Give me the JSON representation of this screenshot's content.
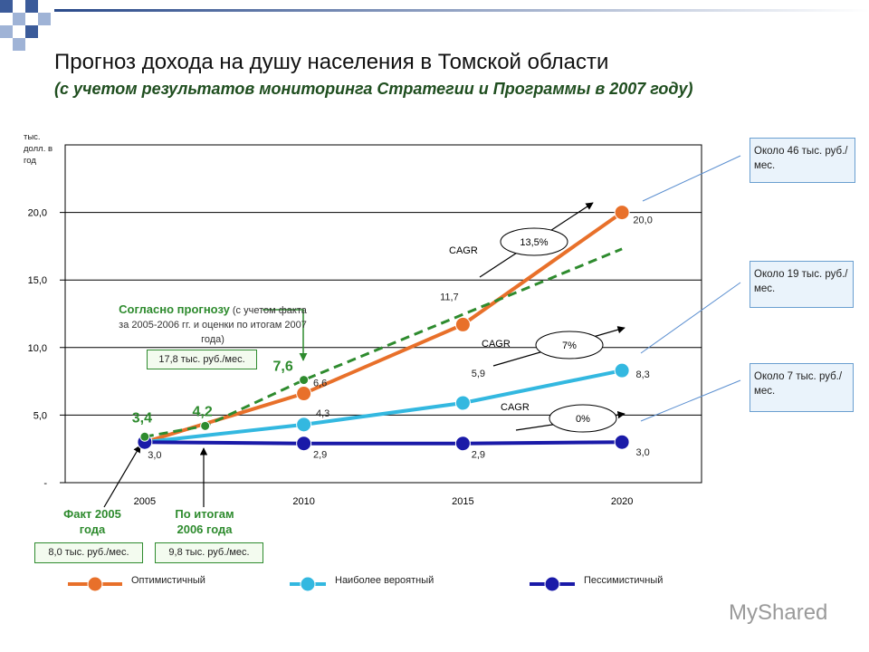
{
  "chart_data": {
    "type": "line",
    "title": "Прогноз дохода на душу населения в Томской области",
    "subtitle": "(с учетом результатов мониторинга Стратегии и Программы в 2007 году)",
    "y_label": "тыс. долл. в год",
    "x": [
      2005,
      2010,
      2015,
      2020
    ],
    "xlim": [
      2002.5,
      2022.5
    ],
    "xticks": [
      2005,
      2010,
      2015,
      2020
    ],
    "ylim": [
      0,
      25
    ],
    "yticks": [
      {
        "value": 0,
        "label": "-"
      },
      {
        "value": 5,
        "label": "5,0"
      },
      {
        "value": 10,
        "label": "10,0"
      },
      {
        "value": 15,
        "label": "15,0"
      },
      {
        "value": 20,
        "label": "20,0"
      }
    ],
    "grid": true,
    "series": [
      {
        "name": "Оптимистичный",
        "color": "#e8702a",
        "values": [
          3.0,
          6.6,
          11.7,
          20.0
        ],
        "value_labels": [
          null,
          "6,6",
          "11,7",
          "20,0"
        ]
      },
      {
        "name": "Наиболее вероятный",
        "color": "#33b8e0",
        "values": [
          3.0,
          4.3,
          5.9,
          8.3
        ],
        "value_labels": [
          null,
          "4,3",
          "5,9",
          "8,3"
        ]
      },
      {
        "name": "Пессимистичный",
        "color": "#1a1aa8",
        "values": [
          3.0,
          2.9,
          2.9,
          3.0
        ],
        "value_labels": [
          "3,0",
          "2,9",
          "2,9",
          "3,0"
        ]
      },
      {
        "color": "#2e8b2e",
        "dashed": true,
        "x": [
          2005,
          2006.9,
          2010,
          2020
        ],
        "values": [
          3.4,
          4.2,
          7.6,
          17.3
        ],
        "value_labels": [
          "3,4",
          "4,2",
          "7,6",
          null
        ],
        "markers": [
          true,
          true,
          true,
          false
        ]
      }
    ],
    "annotations": {
      "cagr": [
        {
          "label": "CAGR",
          "value": "13,5%"
        },
        {
          "label": "CAGR",
          "value": "7%"
        },
        {
          "label": "CAGR",
          "value": "0%"
        }
      ],
      "callouts": [
        "Около 46 тыс. руб./мес.",
        "Около 19 тыс. руб./мес.",
        "Около 7 тыс. руб./мес."
      ],
      "forecast_title": "Согласно прогнозу",
      "forecast_text": "(с учетом факта за 2005-2006 гг. и оценки по итогам 2007 года)",
      "forecast_box": "17,8 тыс. руб./мес.",
      "fact_2005": "Факт 2005 года",
      "fact_2006": "По итогам 2006 года",
      "fact_2005_box": "8,0 тыс. руб./мес.",
      "fact_2006_box": "9,8 тыс. руб./мес."
    }
  },
  "watermark": "MyShared"
}
